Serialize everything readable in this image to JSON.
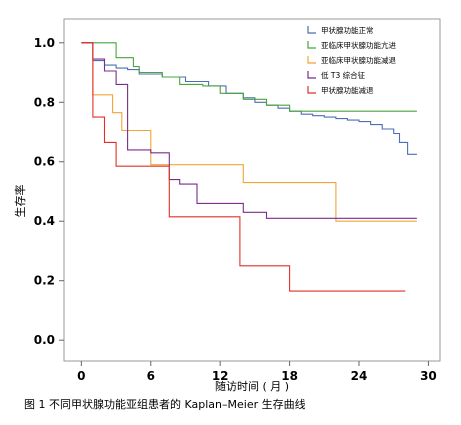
{
  "caption": "图 1  不同甲状腺功能亚组患者的 Kaplan–Meier 生存曲线",
  "chart_data": {
    "type": "line",
    "step": true,
    "title": "",
    "xlabel": "随访时间 ( 月 )",
    "ylabel": "生存率",
    "xlim": [
      -1.5,
      31
    ],
    "ylim": [
      -0.07,
      1.08
    ],
    "xticks": [
      0,
      6,
      12,
      18,
      24,
      30
    ],
    "yticks": [
      0.0,
      0.2,
      0.4,
      0.6,
      0.8,
      1.0
    ],
    "ytick_labels": [
      "0.0",
      "0.2",
      "0.4",
      "0.6",
      "0.8",
      "1.0"
    ],
    "grid": false,
    "legend_position": "top-right",
    "series": [
      {
        "name": "甲状腺功能正常",
        "color": "#4a6fb5",
        "x": [
          0,
          1,
          2,
          3,
          4,
          5,
          7,
          9,
          11,
          12.5,
          14,
          15,
          16,
          17,
          18,
          19,
          20,
          21,
          22,
          23,
          24,
          25,
          26,
          27,
          27.5,
          28.2,
          29
        ],
        "y": [
          1.0,
          0.94,
          0.925,
          0.915,
          0.91,
          0.895,
          0.885,
          0.87,
          0.855,
          0.83,
          0.815,
          0.8,
          0.79,
          0.78,
          0.77,
          0.76,
          0.755,
          0.75,
          0.745,
          0.74,
          0.735,
          0.725,
          0.71,
          0.695,
          0.665,
          0.625,
          0.625
        ]
      },
      {
        "name": "亚临床甲状腺功能亢进",
        "color": "#49a43e",
        "x": [
          0,
          3,
          4.5,
          5,
          7,
          8.5,
          10.5,
          12,
          14,
          16,
          18,
          24,
          29
        ],
        "y": [
          1.0,
          0.95,
          0.92,
          0.9,
          0.885,
          0.86,
          0.855,
          0.83,
          0.81,
          0.79,
          0.77,
          0.77,
          0.77
        ]
      },
      {
        "name": "亚临床甲状腺功能减退",
        "color": "#f0a535",
        "x": [
          0,
          1,
          2.7,
          3.5,
          6,
          8,
          14,
          20,
          22,
          29
        ],
        "y": [
          1.0,
          0.825,
          0.765,
          0.705,
          0.59,
          0.59,
          0.53,
          0.53,
          0.4,
          0.4
        ]
      },
      {
        "name": "低 T3 综合征",
        "color": "#7b2d8b",
        "x": [
          0,
          1,
          2,
          3,
          4,
          6,
          7.6,
          8.5,
          10,
          14,
          16,
          29
        ],
        "y": [
          1.0,
          0.945,
          0.905,
          0.86,
          0.64,
          0.63,
          0.54,
          0.525,
          0.46,
          0.43,
          0.41,
          0.41
        ]
      },
      {
        "name": "甲状腺功能减退",
        "color": "#e03128",
        "x": [
          0,
          1,
          2,
          3,
          7.6,
          13.7,
          18,
          28
        ],
        "y": [
          1.0,
          0.75,
          0.665,
          0.585,
          0.415,
          0.25,
          0.165,
          0.165
        ]
      }
    ]
  }
}
